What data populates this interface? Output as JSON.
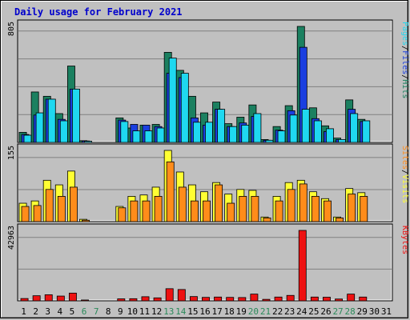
{
  "title": "Daily usage for February 2021",
  "chart_data": [
    {
      "type": "bar",
      "panel": "top",
      "max_label": "805",
      "ymax": 805,
      "legend": [
        "Pages",
        "/",
        "Files",
        "/",
        "Hits"
      ],
      "series": [
        {
          "name": "Hits",
          "color": "#1b8060",
          "values": [
            70,
            350,
            320,
            200,
            530,
            12,
            0,
            0,
            170,
            100,
            120,
            125,
            625,
            500,
            320,
            205,
            280,
            130,
            175,
            260,
            20,
            110,
            255,
            805,
            240,
            115,
            30,
            295,
            160,
            0,
            0
          ]
        },
        {
          "name": "Files",
          "color": "#1a3fe0",
          "values": [
            55,
            190,
            300,
            160,
            370,
            10,
            0,
            0,
            155,
            125,
            120,
            110,
            480,
            450,
            170,
            120,
            230,
            110,
            135,
            180,
            15,
            85,
            220,
            660,
            165,
            75,
            20,
            230,
            145,
            0,
            0
          ]
        },
        {
          "name": "Pages",
          "color": "#1fd8f0",
          "values": [
            50,
            205,
            300,
            150,
            370,
            8,
            0,
            0,
            145,
            80,
            80,
            100,
            585,
            480,
            140,
            140,
            230,
            110,
            120,
            200,
            15,
            80,
            190,
            230,
            150,
            95,
            20,
            200,
            150,
            0,
            0
          ]
        }
      ],
      "categories": [
        "1",
        "2",
        "3",
        "4",
        "5",
        "6",
        "7",
        "8",
        "9",
        "10",
        "11",
        "12",
        "13",
        "14",
        "15",
        "16",
        "17",
        "18",
        "19",
        "20",
        "21",
        "22",
        "23",
        "24",
        "25",
        "26",
        "27",
        "28",
        "29",
        "30",
        "31"
      ]
    },
    {
      "type": "bar",
      "panel": "middle",
      "max_label": "155",
      "ymax": 155,
      "legend": [
        "Sites",
        "/",
        "Visits"
      ],
      "series": [
        {
          "name": "Visits",
          "color": "#ffff33",
          "values": [
            40,
            45,
            90,
            80,
            110,
            5,
            0,
            0,
            33,
            55,
            58,
            75,
            155,
            108,
            80,
            65,
            85,
            60,
            70,
            68,
            10,
            55,
            85,
            90,
            65,
            50,
            10,
            72,
            63,
            0,
            0
          ]
        },
        {
          "name": "Sites",
          "color": "#ff8c1a",
          "values": [
            33,
            35,
            70,
            55,
            75,
            3,
            0,
            0,
            30,
            45,
            45,
            55,
            130,
            75,
            45,
            45,
            80,
            40,
            55,
            55,
            8,
            45,
            70,
            82,
            55,
            45,
            8,
            60,
            55,
            0,
            0
          ]
        }
      ],
      "categories": [
        "1",
        "2",
        "3",
        "4",
        "5",
        "6",
        "7",
        "8",
        "9",
        "10",
        "11",
        "12",
        "13",
        "14",
        "15",
        "16",
        "17",
        "18",
        "19",
        "20",
        "21",
        "22",
        "23",
        "24",
        "25",
        "26",
        "27",
        "28",
        "29",
        "30",
        "31"
      ]
    },
    {
      "type": "bar",
      "panel": "bottom",
      "max_label": "42963",
      "ymax": 42963,
      "legend": [
        "KBytes"
      ],
      "series": [
        {
          "name": "KBytes",
          "color": "#ee1111",
          "values": [
            1400,
            3100,
            3700,
            2900,
            4700,
            500,
            0,
            0,
            1200,
            1300,
            2500,
            1800,
            7400,
            6900,
            2600,
            2100,
            2300,
            2100,
            2000,
            4100,
            900,
            2300,
            3300,
            42963,
            2300,
            2200,
            1100,
            4100,
            2300,
            0,
            0
          ]
        }
      ]
    }
  ],
  "weekend_days": [
    "6",
    "7",
    "13",
    "14",
    "20",
    "21",
    "27",
    "28"
  ],
  "colors": {
    "weekday": "#000000",
    "weekend": "#2a8a5a",
    "panel_bg": "#c0c0c0",
    "grid": "#808080"
  }
}
